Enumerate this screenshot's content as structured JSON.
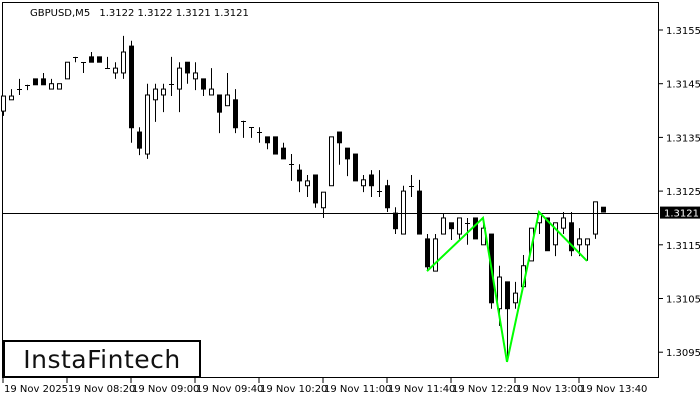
{
  "header": {
    "symbol": "GBPUSD,M5",
    "ohlc": "1.3122 1.3122 1.3121 1.3121"
  },
  "watermark": "InstaFintech",
  "colors": {
    "bull_body": "#ffffff",
    "bear_body": "#000000",
    "pattern_line": "#00ff00",
    "background": "#ffffff"
  },
  "chart_data": {
    "type": "candlestick",
    "title": "",
    "ylim": [
      1.30905,
      1.31605
    ],
    "y_ticks": [
      "1.3155",
      "1.3145",
      "1.3135",
      "1.3125",
      "1.3115",
      "1.3105",
      "1.3095"
    ],
    "x_tick_labels": [
      {
        "candle": 0,
        "label": "19 Nov 2025"
      },
      {
        "candle": 8,
        "label": "19 Nov 08:20"
      },
      {
        "candle": 16,
        "label": "19 Nov 09:00"
      },
      {
        "candle": 24,
        "label": "19 Nov 09:40"
      },
      {
        "candle": 32,
        "label": "19 Nov 10:20"
      },
      {
        "candle": 40,
        "label": "19 Nov 11:00"
      },
      {
        "candle": 48,
        "label": "19 Nov 11:40"
      },
      {
        "candle": 56,
        "label": "19 Nov 12:20"
      },
      {
        "candle": 64,
        "label": "19 Nov 13:00"
      },
      {
        "candle": 72,
        "label": "19 Nov 13:40"
      }
    ],
    "current_price": "1.3121",
    "grid": false,
    "candles_ohlc": [
      [
        1.31399,
        1.31427,
        1.3139,
        1.31427
      ],
      [
        1.3142,
        1.3144,
        1.3142,
        1.31427
      ],
      [
        1.3144,
        1.31459,
        1.31429,
        1.3144
      ],
      [
        1.31448,
        1.31448,
        1.31438,
        1.31448
      ],
      [
        1.31459,
        1.31459,
        1.31448,
        1.31448
      ],
      [
        1.31459,
        1.3147,
        1.31448,
        1.31448
      ],
      [
        1.3144,
        1.31459,
        1.3144,
        1.3145
      ],
      [
        1.3144,
        1.3145,
        1.3144,
        1.3145
      ],
      [
        1.31459,
        1.3149,
        1.31459,
        1.3149
      ],
      [
        1.315,
        1.315,
        1.3149,
        1.315
      ],
      [
        1.3149,
        1.3149,
        1.3147,
        1.3149
      ],
      [
        1.315,
        1.31509,
        1.3149,
        1.3149
      ],
      [
        1.315,
        1.315,
        1.3149,
        1.3149
      ],
      [
        1.31479,
        1.315,
        1.31479,
        1.31479
      ],
      [
        1.3147,
        1.3149,
        1.31459,
        1.31479
      ],
      [
        1.3147,
        1.31539,
        1.31459,
        1.31509
      ],
      [
        1.3152,
        1.3153,
        1.3134,
        1.31368
      ],
      [
        1.3136,
        1.31369,
        1.31317,
        1.3133
      ],
      [
        1.31319,
        1.3145,
        1.3131,
        1.31429
      ],
      [
        1.3142,
        1.3145,
        1.31379,
        1.3144
      ],
      [
        1.31429,
        1.3145,
        1.31397,
        1.3144
      ],
      [
        1.3145,
        1.315,
        1.31427,
        1.3145
      ],
      [
        1.3144,
        1.3149,
        1.31397,
        1.31479
      ],
      [
        1.3149,
        1.3149,
        1.3145,
        1.3147
      ],
      [
        1.31459,
        1.3149,
        1.31438,
        1.3147
      ],
      [
        1.31459,
        1.31459,
        1.31427,
        1.3144
      ],
      [
        1.31429,
        1.31479,
        1.31429,
        1.3144
      ],
      [
        1.31429,
        1.31429,
        1.31358,
        1.31397
      ],
      [
        1.31409,
        1.3147,
        1.31409,
        1.31429
      ],
      [
        1.3142,
        1.3144,
        1.31358,
        1.31368
      ],
      [
        1.31381,
        1.31381,
        1.31349,
        1.31381
      ],
      [
        1.31369,
        1.31369,
        1.31349,
        1.31369
      ],
      [
        1.3136,
        1.31369,
        1.3134,
        1.3136
      ],
      [
        1.31351,
        1.31351,
        1.31328,
        1.3134
      ],
      [
        1.31351,
        1.31351,
        1.31319,
        1.31319
      ],
      [
        1.3133,
        1.3134,
        1.3131,
        1.3131
      ],
      [
        1.313,
        1.31319,
        1.31269,
        1.313
      ],
      [
        1.31289,
        1.313,
        1.31248,
        1.31269
      ],
      [
        1.3126,
        1.3128,
        1.31239,
        1.31269
      ],
      [
        1.3128,
        1.3128,
        1.31219,
        1.31228
      ],
      [
        1.31219,
        1.31248,
        1.312,
        1.31248
      ],
      [
        1.3126,
        1.31351,
        1.3126,
        1.31351
      ],
      [
        1.3136,
        1.3136,
        1.31299,
        1.3134
      ],
      [
        1.3133,
        1.3133,
        1.31278,
        1.3131
      ],
      [
        1.31319,
        1.31319,
        1.31269,
        1.31269
      ],
      [
        1.3126,
        1.3128,
        1.31248,
        1.31271
      ],
      [
        1.3128,
        1.31289,
        1.31239,
        1.3126
      ],
      [
        1.3125,
        1.31289,
        1.31239,
        1.3125
      ],
      [
        1.3126,
        1.31271,
        1.31211,
        1.31219
      ],
      [
        1.31209,
        1.3122,
        1.3117,
        1.3118
      ],
      [
        1.3117,
        1.3126,
        1.3117,
        1.3125
      ],
      [
        1.3126,
        1.3128,
        1.31239,
        1.3126
      ],
      [
        1.3125,
        1.31271,
        1.3117,
        1.3117
      ],
      [
        1.31161,
        1.3117,
        1.31103,
        1.31109
      ],
      [
        1.31101,
        1.3117,
        1.31101,
        1.31161
      ],
      [
        1.3117,
        1.31209,
        1.3117,
        1.312
      ],
      [
        1.31191,
        1.31191,
        1.31159,
        1.3118
      ],
      [
        1.3117,
        1.312,
        1.31159,
        1.312
      ],
      [
        1.31191,
        1.312,
        1.3115,
        1.31191
      ],
      [
        1.312,
        1.312,
        1.31161,
        1.31161
      ],
      [
        1.3115,
        1.312,
        1.3115,
        1.31181
      ],
      [
        1.3117,
        1.3117,
        1.31031,
        1.31042
      ],
      [
        1.31031,
        1.31111,
        1.30999,
        1.3109
      ],
      [
        1.31081,
        1.31081,
        1.30932,
        1.31031
      ],
      [
        1.31042,
        1.31081,
        1.31031,
        1.3106
      ],
      [
        1.31072,
        1.31131,
        1.31072,
        1.31111
      ],
      [
        1.3112,
        1.31181,
        1.3112,
        1.31181
      ],
      [
        1.31191,
        1.31211,
        1.3117,
        1.31207
      ],
      [
        1.312,
        1.312,
        1.31139,
        1.31139
      ],
      [
        1.3115,
        1.31191,
        1.31129,
        1.31191
      ],
      [
        1.31181,
        1.31211,
        1.3117,
        1.312
      ],
      [
        1.31191,
        1.31211,
        1.31129,
        1.31139
      ],
      [
        1.3115,
        1.31181,
        1.31129,
        1.31161
      ],
      [
        1.3115,
        1.31161,
        1.3112,
        1.31161
      ],
      [
        1.3117,
        1.3123,
        1.31161,
        1.3123
      ],
      [
        1.3122,
        1.3122,
        1.31211,
        1.31211
      ]
    ],
    "pattern_points": [
      {
        "candle": 53,
        "price": 1.31101
      },
      {
        "candle": 60,
        "price": 1.312
      },
      {
        "candle": 63,
        "price": 1.30932
      },
      {
        "candle": 67,
        "price": 1.31211
      },
      {
        "candle": 73,
        "price": 1.3112
      }
    ]
  }
}
